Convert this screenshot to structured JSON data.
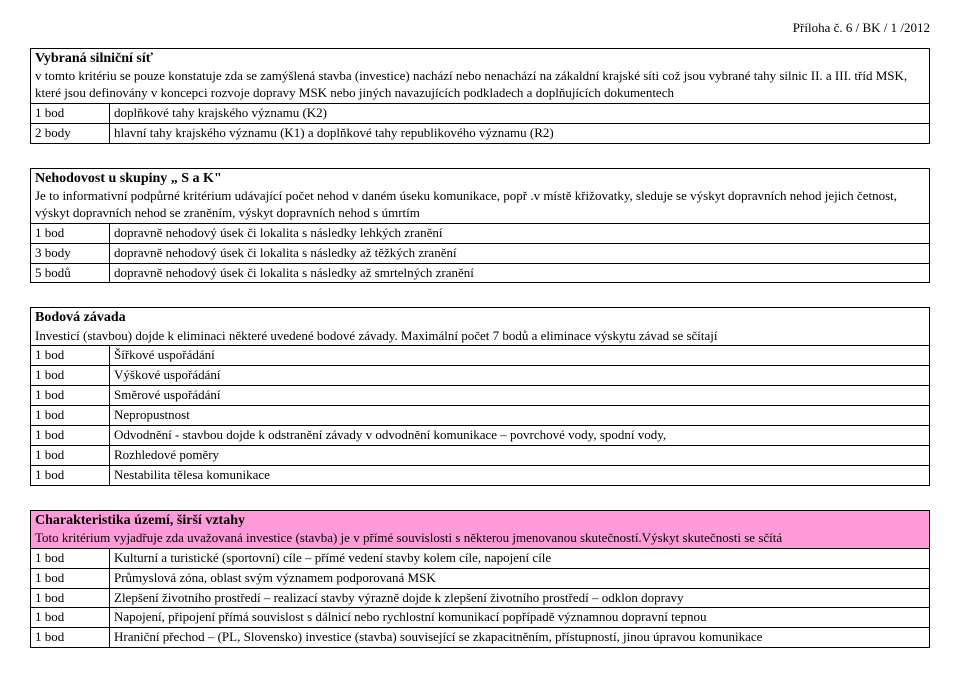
{
  "header": {
    "appendix": "Příloha č. 6 / BK / 1 /2012"
  },
  "section1": {
    "title": "Vybraná silniční síť",
    "desc": "v tomto kritériu se pouze konstatuje zda se zamýšlená stavba (investice) nachází nebo nenachází na zákaldní krajské síti což jsou vybrané tahy silnic II. a III. tříd MSK, které jsou definovány v koncepci rozvoje dopravy MSK nebo jiných navazujících podkladech a doplňujících dokumentech",
    "rows": [
      {
        "pts": "1 bod",
        "txt": "doplňkové tahy krajského významu (K2)"
      },
      {
        "pts": "2 body",
        "txt": "hlavní tahy krajského významu (K1) a doplňkové tahy republikového významu (R2)"
      }
    ]
  },
  "section2": {
    "title": "Nehodovost u skupiny „ S a K\"",
    "desc": "Je to informativní podpůrné kritérium udávající počet nehod v daném úseku komunikace, popř .v místě křižovatky, sleduje se výskyt dopravních nehod jejich četnost, výskyt dopravních nehod se zraněním, výskyt dopravních nehod s úmrtím",
    "rows": [
      {
        "pts": "1 bod",
        "txt": "dopravně nehodový úsek či lokalita s následky lehkých zranění"
      },
      {
        "pts": "3 body",
        "txt": "dopravně nehodový úsek či lokalita s následky až těžkých zranění"
      },
      {
        "pts": "5 bodů",
        "txt": "dopravně nehodový úsek či lokalita s následky až smrtelných zranění"
      }
    ]
  },
  "section3": {
    "title": "Bodová závada",
    "desc": "Investicí (stavbou)  dojde k eliminaci některé uvedené bodové závady. Maximální počet 7 bodů a eliminace výskytu závad se sčítají",
    "rows": [
      {
        "pts": "1 bod",
        "txt": "Šířkové  uspořádání"
      },
      {
        "pts": "1 bod",
        "txt": "Výškové uspořádání"
      },
      {
        "pts": "1 bod",
        "txt": "Směrové uspořádání"
      },
      {
        "pts": "1 bod",
        "txt": "Nepropustnost"
      },
      {
        "pts": "1 bod",
        "txt": "Odvodnění - stavbou dojde k odstranění závady v odvodnění komunikace – povrchové vody, spodní vody,"
      },
      {
        "pts": "1 bod",
        "txt": "Rozhledové poměry"
      },
      {
        "pts": "1 bod",
        "txt": "Nestabilita tělesa komunikace"
      }
    ]
  },
  "section4": {
    "title": "Charakteristika území, širší vztahy",
    "desc": "Toto kritérium vyjadřuje zda uvažovaná investice (stavba) je v přímé souvislosti s některou jmenovanou skutečností.Výskyt skutečnosti se sčítá",
    "rows": [
      {
        "pts": "1 bod",
        "txt": "Kulturní a turistické (sportovní) cíle – přímé vedení stavby kolem cíle, napojení cíle"
      },
      {
        "pts": "1 bod",
        "txt": "Průmyslová zóna, oblast svým významem podporovaná MSK"
      },
      {
        "pts": "1 bod",
        "txt": "Zlepšení životního prostředí – realizací stavby výrazně dojde k zlepšení životního prostředí – odklon dopravy"
      },
      {
        "pts": "1 bod",
        "txt": "Napojení, připojení přímá souvislost s dálnicí nebo rychlostní komunikací popřípadě významnou dopravní tepnou"
      },
      {
        "pts": "1 bod",
        "txt": "Hraniční přechod – (PL, Slovensko) investice (stavba) související se zkapacitněním, přístupností, jinou úpravou komunikace"
      }
    ]
  }
}
